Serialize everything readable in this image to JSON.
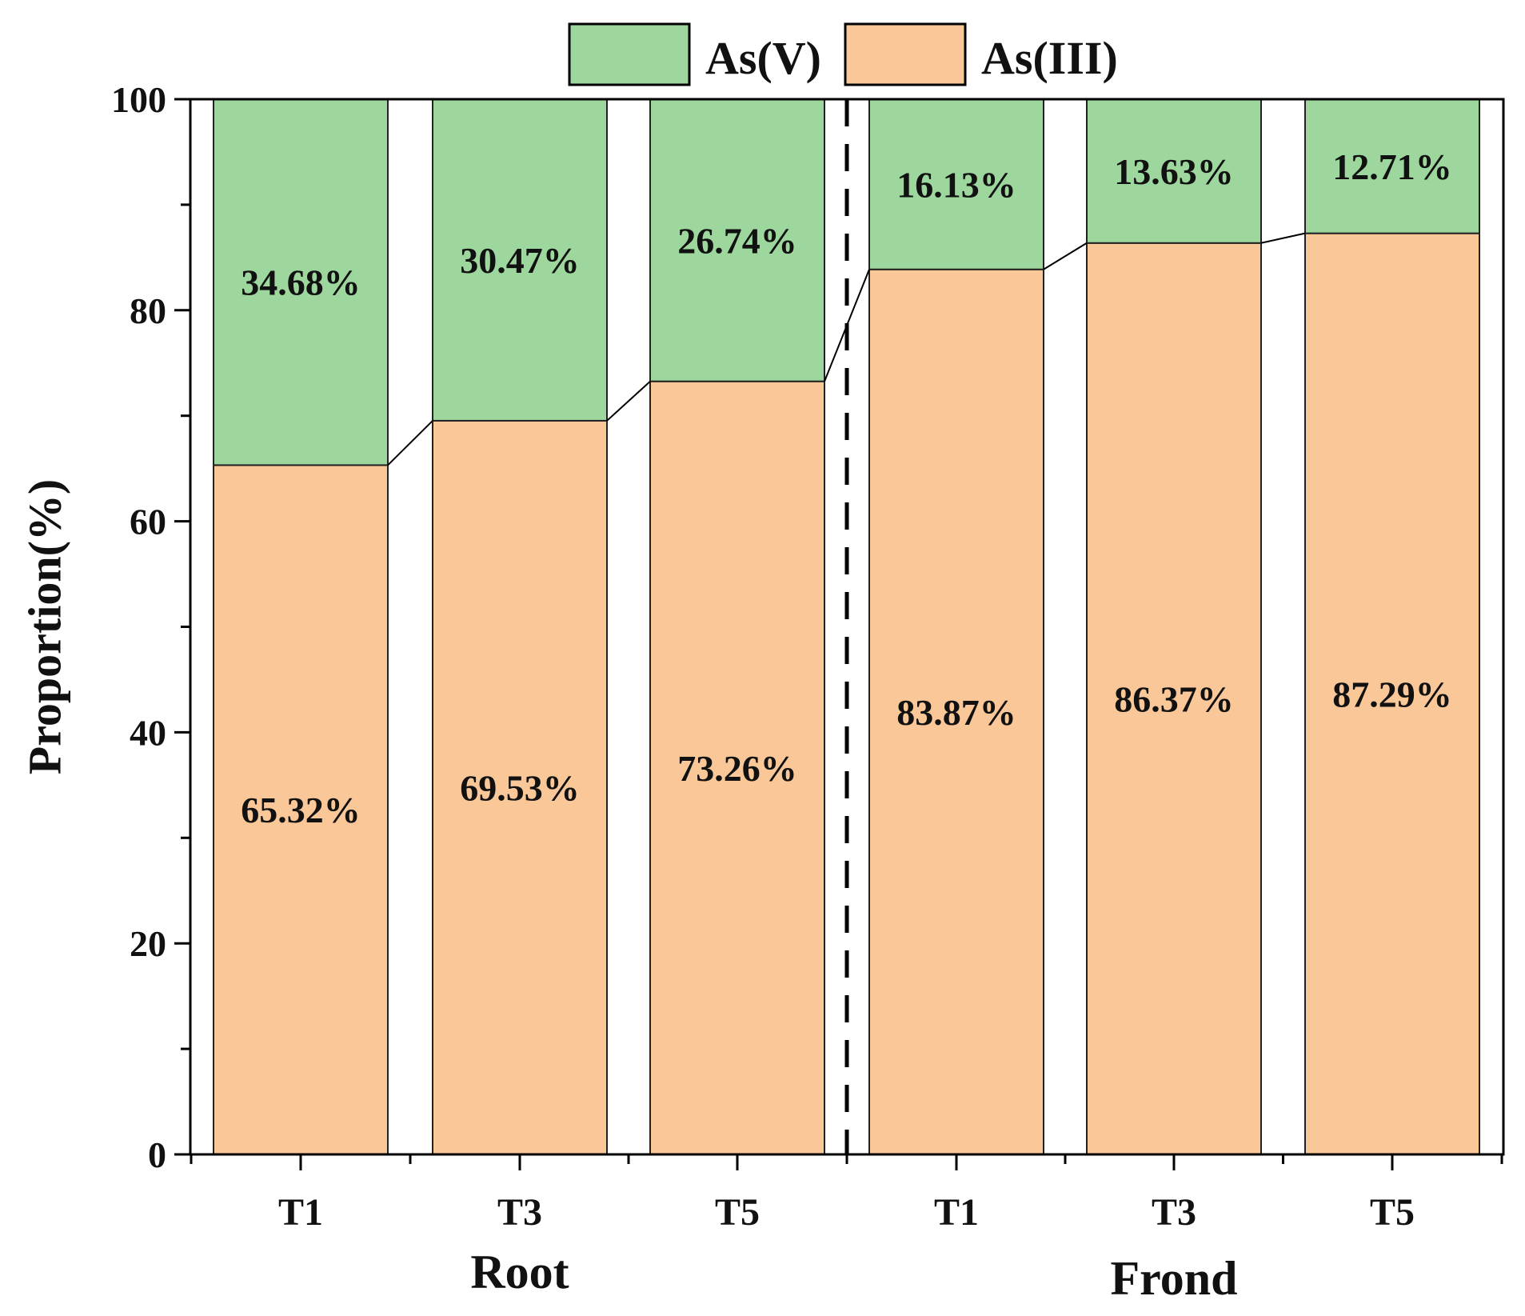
{
  "chart_data": {
    "type": "stacked-bar",
    "title": "",
    "xlabel": "",
    "ylabel": "Proportion(%)",
    "ylim": [
      0,
      100
    ],
    "yticks": [
      "0",
      "20",
      "40",
      "60",
      "80",
      "100"
    ],
    "grid": false,
    "legend_position": "top-center",
    "groups": [
      {
        "name": "Root",
        "categories": [
          "T1",
          "T3",
          "T5"
        ]
      },
      {
        "name": "Frond",
        "categories": [
          "T1",
          "T3",
          "T5"
        ]
      }
    ],
    "categories": [
      "T1",
      "T3",
      "T5",
      "T1",
      "T3",
      "T5"
    ],
    "series": [
      {
        "name": "As(III)",
        "color": "#FAC898",
        "values": [
          65.32,
          69.53,
          73.26,
          83.87,
          86.37,
          87.29
        ],
        "labels": [
          "65.32%",
          "69.53%",
          "73.26%",
          "83.87%",
          "86.37%",
          "87.29%"
        ]
      },
      {
        "name": "As(V)",
        "color": "#9DD79D",
        "values": [
          34.68,
          30.47,
          26.74,
          16.13,
          13.63,
          12.71
        ],
        "labels": [
          "34.68%",
          "30.47%",
          "26.74%",
          "16.13%",
          "13.63%",
          "12.71%"
        ]
      }
    ]
  }
}
